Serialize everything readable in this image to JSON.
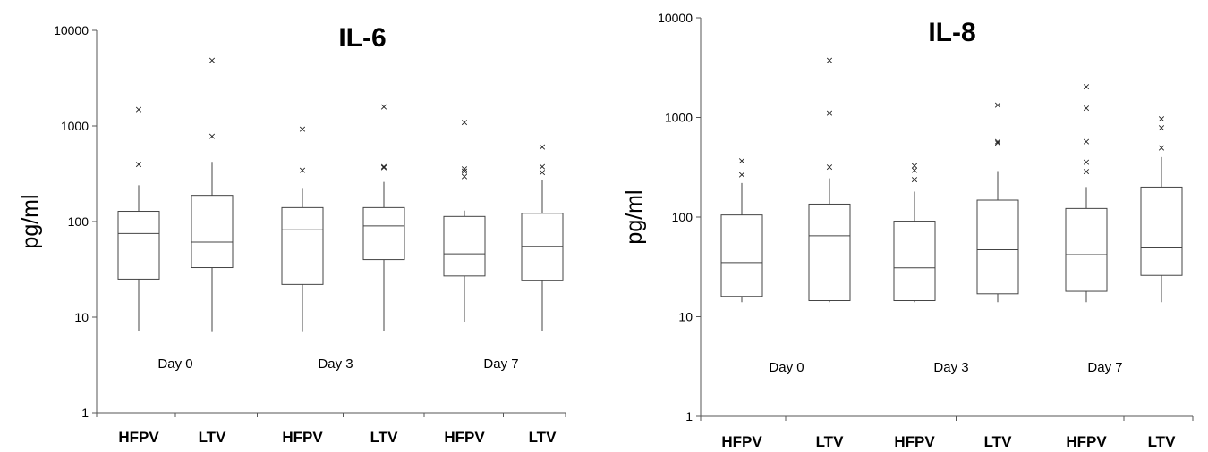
{
  "chart_data": [
    {
      "type": "box",
      "title": "IL-6",
      "ylabel": "pg/ml",
      "yscale": "log",
      "ylim": [
        1,
        10000
      ],
      "yticks": [
        "1",
        "10",
        "100",
        "1000",
        "10000"
      ],
      "categories": [
        "HFPV",
        "LTV",
        "HFPV",
        "LTV",
        "HFPV",
        "LTV"
      ],
      "groups": [
        "Day 0",
        "Day 3",
        "Day 7"
      ],
      "boxes": [
        {
          "group": "Day 0",
          "category": "HFPV",
          "whisker_low": 7.2,
          "q1": 25,
          "median": 75,
          "q3": 128,
          "whisker_high": 240,
          "outliers": [
            400,
            1500
          ]
        },
        {
          "group": "Day 0",
          "category": "LTV",
          "whisker_low": 7,
          "q1": 33,
          "median": 61,
          "q3": 188,
          "whisker_high": 420,
          "outliers": [
            790,
            4900
          ]
        },
        {
          "group": "Day 3",
          "category": "HFPV",
          "whisker_low": 7,
          "q1": 22,
          "median": 82,
          "q3": 140,
          "whisker_high": 220,
          "outliers": [
            350,
            940
          ]
        },
        {
          "group": "Day 3",
          "category": "LTV",
          "whisker_low": 7.2,
          "q1": 40,
          "median": 90,
          "q3": 140,
          "whisker_high": 260,
          "outliers": [
            370,
            380,
            1600
          ]
        },
        {
          "group": "Day 7",
          "category": "HFPV",
          "whisker_low": 8.8,
          "q1": 27,
          "median": 46,
          "q3": 113,
          "whisker_high": 130,
          "outliers": [
            300,
            340,
            360,
            1100
          ]
        },
        {
          "group": "Day 7",
          "category": "LTV",
          "whisker_low": 7.2,
          "q1": 24,
          "median": 55,
          "q3": 122,
          "whisker_high": 270,
          "outliers": [
            330,
            380,
            610
          ]
        }
      ]
    },
    {
      "type": "box",
      "title": "IL-8",
      "ylabel": "pg/ml",
      "yscale": "log",
      "ylim": [
        1,
        10000
      ],
      "yticks": [
        "1",
        "10",
        "100",
        "1000",
        "10000"
      ],
      "categories": [
        "HFPV",
        "LTV",
        "HFPV",
        "LTV",
        "HFPV",
        "LTV"
      ],
      "groups": [
        "Day 0",
        "Day 3",
        "Day 7"
      ],
      "boxes": [
        {
          "group": "Day 0",
          "category": "HFPV",
          "whisker_low": 14,
          "q1": 16,
          "median": 35,
          "q3": 105,
          "whisker_high": 220,
          "outliers": [
            270,
            370
          ]
        },
        {
          "group": "Day 0",
          "category": "LTV",
          "whisker_low": 14,
          "q1": 14.5,
          "median": 65,
          "q3": 135,
          "whisker_high": 245,
          "outliers": [
            320,
            1120,
            3800
          ]
        },
        {
          "group": "Day 3",
          "category": "HFPV",
          "whisker_low": 14,
          "q1": 14.5,
          "median": 31,
          "q3": 91,
          "whisker_high": 180,
          "outliers": [
            240,
            300,
            330
          ]
        },
        {
          "group": "Day 3",
          "category": "LTV",
          "whisker_low": 14,
          "q1": 17,
          "median": 47,
          "q3": 148,
          "whisker_high": 290,
          "outliers": [
            560,
            580,
            1350
          ]
        },
        {
          "group": "Day 7",
          "category": "HFPV",
          "whisker_low": 14,
          "q1": 18,
          "median": 42,
          "q3": 122,
          "whisker_high": 200,
          "outliers": [
            290,
            360,
            580,
            1250,
            2050
          ]
        },
        {
          "group": "Day 7",
          "category": "LTV",
          "whisker_low": 14,
          "q1": 26,
          "median": 49,
          "q3": 200,
          "whisker_high": 400,
          "outliers": [
            500,
            800,
            980
          ]
        }
      ]
    }
  ]
}
